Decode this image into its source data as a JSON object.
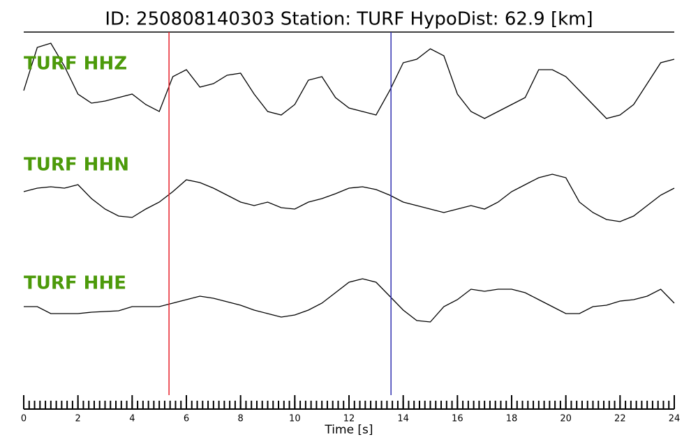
{
  "chart_data": {
    "type": "waveform",
    "title": "ID: 250808140303   Station: TURF   HypoDist:    62.9 [km]",
    "x_label": "Time [s]",
    "x": [
      0,
      0.5,
      1,
      1.5,
      2,
      2.5,
      3,
      3.5,
      4,
      4.5,
      5,
      5.5,
      6,
      6.5,
      7,
      7.5,
      8,
      8.5,
      9,
      9.5,
      10,
      10.5,
      11,
      11.5,
      12,
      12.5,
      13,
      13.5,
      14,
      14.5,
      15,
      15.5,
      16,
      16.5,
      17,
      17.5,
      18,
      18.5,
      19,
      19.5,
      20,
      20.5,
      21,
      21.5,
      22,
      22.5,
      23,
      23.5,
      24
    ],
    "label_color": "#4c9a0a",
    "series": [
      {
        "name": "TURF HHZ",
        "color": "#000000",
        "values": [
          0,
          62,
          68,
          35,
          -5,
          -18,
          -15,
          -10,
          -5,
          -20,
          -30,
          20,
          30,
          5,
          10,
          22,
          25,
          -5,
          -30,
          -35,
          -20,
          15,
          20,
          -10,
          -25,
          -30,
          -35,
          0,
          40,
          45,
          60,
          50,
          -5,
          -30,
          -40,
          -30,
          -20,
          -10,
          30,
          30,
          20,
          0,
          -20,
          -40,
          -35,
          -20,
          10,
          40,
          45
        ]
      },
      {
        "name": "TURF HHN",
        "color": "#000000",
        "values": [
          0,
          5,
          7,
          5,
          10,
          -10,
          -25,
          -35,
          -37,
          -25,
          -15,
          0,
          17,
          13,
          5,
          -5,
          -15,
          -20,
          -15,
          -23,
          -25,
          -15,
          -10,
          -3,
          5,
          7,
          3,
          -5,
          -15,
          -20,
          -25,
          -30,
          -25,
          -20,
          -25,
          -15,
          0,
          10,
          20,
          25,
          20,
          -15,
          -30,
          -40,
          -43,
          -35,
          -20,
          -5,
          5
        ]
      },
      {
        "name": "TURF HHE",
        "color": "#000000",
        "values": [
          5,
          5,
          -5,
          -5,
          -5,
          -3,
          -2,
          -1,
          5,
          5,
          5,
          10,
          15,
          20,
          17,
          12,
          7,
          0,
          -5,
          -10,
          -7,
          0,
          10,
          25,
          40,
          45,
          40,
          20,
          0,
          -15,
          -17,
          5,
          15,
          30,
          27,
          30,
          30,
          25,
          15,
          5,
          -5,
          -5,
          5,
          7,
          13,
          15,
          20,
          30,
          10
        ]
      }
    ],
    "markers": [
      {
        "x": 5.36,
        "color": "#e8202a"
      },
      {
        "x": 13.55,
        "color": "#3030b0"
      }
    ],
    "xlim": [
      0,
      24
    ],
    "xticks": [
      0,
      2,
      4,
      6,
      8,
      10,
      12,
      14,
      16,
      18,
      20,
      22,
      24
    ],
    "minor_tick_interval": 0.2
  }
}
